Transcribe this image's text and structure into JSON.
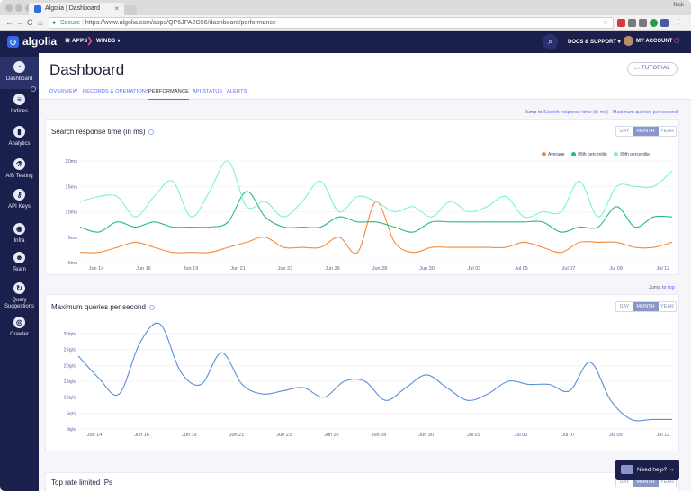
{
  "browser": {
    "tab_title": "Algolia | Dashboard",
    "tab_close": "×",
    "user": "Nick",
    "secure_label": "Secure",
    "url": "https://www.algolia.com/apps/QP6JPA2G56/dashboard/performance",
    "back": "←",
    "forward": "→",
    "reload": "C",
    "home": "⌂"
  },
  "appbar": {
    "logo": "algolia",
    "apps": "APPS",
    "app_name": "WINDS",
    "docs": "DOCS & SUPPORT",
    "account": "MY ACCOUNT"
  },
  "sidebar": {
    "items": [
      {
        "label": "Dashboard",
        "icon": "dashboard-icon",
        "glyph": "◔"
      },
      {
        "label": "Indices",
        "icon": "database-icon",
        "glyph": "≡"
      },
      {
        "label": "Analytics",
        "icon": "analytics-icon",
        "glyph": "▮"
      },
      {
        "label": "A/B Testing",
        "icon": "ab-testing-icon",
        "glyph": "⚗"
      },
      {
        "label": "API Keys",
        "icon": "key-icon",
        "glyph": "⚷"
      },
      {
        "label": "Infra",
        "icon": "infra-icon",
        "glyph": "◉"
      },
      {
        "label": "Team",
        "icon": "team-icon",
        "glyph": "☻"
      },
      {
        "label": "Query Suggestions",
        "icon": "query-suggestions-icon",
        "glyph": "↻"
      },
      {
        "label": "Crawler",
        "icon": "crawler-icon",
        "glyph": "◎"
      }
    ]
  },
  "header": {
    "title": "Dashboard",
    "tutorial": "TUTORIAL",
    "tabs": [
      "OVERVIEW",
      "RECORDS & OPERATIONS",
      "PERFORMANCE",
      "API STATUS",
      "ALERTS"
    ]
  },
  "jump": {
    "label": "Jump to",
    "link1": "Search response time (in ms)",
    "sep": "-",
    "link2": "Maximum queries per second",
    "label2": "Jump to",
    "top": "top"
  },
  "range": {
    "day": "DAY",
    "month": "MONTH",
    "year": "YEAR"
  },
  "colors": {
    "average": "#f7893b",
    "p90": "#2bb889",
    "p99": "#7ef2d0",
    "qps": "#5b8fd9"
  },
  "chart_data": [
    {
      "type": "line",
      "title": "Search response time (in ms)",
      "x_ticks": [
        "Jun 14",
        "Jun 16",
        "Jun 19",
        "Jun 21",
        "Jun 23",
        "Jun 26",
        "Jun 28",
        "Jun 30",
        "Jul 03",
        "Jul 05",
        "Jul 07",
        "Jul 09",
        "Jul 12"
      ],
      "y_ticks": [
        "20ms",
        "15ms",
        "10ms",
        "5ms",
        "0ms"
      ],
      "ylim": [
        0,
        20
      ],
      "legend_position": "top-right",
      "series": [
        {
          "name": "Average",
          "values": [
            2,
            2,
            3,
            4,
            3,
            2,
            2,
            2,
            3,
            4,
            5,
            3,
            3,
            3,
            5,
            2,
            12,
            4,
            2,
            3,
            3,
            3,
            3,
            3,
            4,
            3,
            2,
            4,
            4,
            4,
            3,
            3,
            4
          ]
        },
        {
          "name": "90th percentile",
          "values": [
            7,
            6,
            8,
            7,
            8,
            7,
            7,
            7,
            8,
            14,
            9,
            7,
            7,
            7,
            9,
            8,
            8,
            7,
            6,
            8,
            8,
            8,
            8,
            8,
            8,
            8,
            6,
            7,
            7,
            11,
            7,
            9,
            9
          ]
        },
        {
          "name": "99th percentile",
          "values": [
            12,
            13,
            13,
            9,
            13,
            16,
            9,
            14,
            20,
            11,
            12,
            9,
            12,
            16,
            10,
            13,
            12,
            10,
            11,
            9,
            12,
            10,
            11,
            13,
            9,
            10,
            10,
            16,
            9,
            15,
            15,
            15,
            18
          ]
        }
      ]
    },
    {
      "type": "line",
      "title": "Maximum queries per second",
      "x_ticks": [
        "Jun 14",
        "Jun 16",
        "Jun 19",
        "Jun 21",
        "Jun 23",
        "Jun 26",
        "Jun 28",
        "Jun 30",
        "Jul 03",
        "Jul 05",
        "Jul 07",
        "Jul 09",
        "Jul 12"
      ],
      "y_ticks": [
        "30q/s",
        "25q/s",
        "20q/s",
        "15q/s",
        "10q/s",
        "5q/s",
        "0q/s"
      ],
      "ylim": [
        0,
        35
      ],
      "series": [
        {
          "name": "",
          "values": [
            23,
            16,
            11,
            27,
            33,
            18,
            14,
            24,
            14,
            11,
            12,
            13,
            10,
            15,
            15,
            9,
            13,
            17,
            13,
            9,
            11,
            15,
            14,
            14,
            12,
            21,
            9,
            3,
            3,
            3
          ]
        }
      ]
    }
  ],
  "bottom": {
    "title": "Top rate limited IPs"
  },
  "help": {
    "label": "Need help?",
    "arrow": "→"
  }
}
